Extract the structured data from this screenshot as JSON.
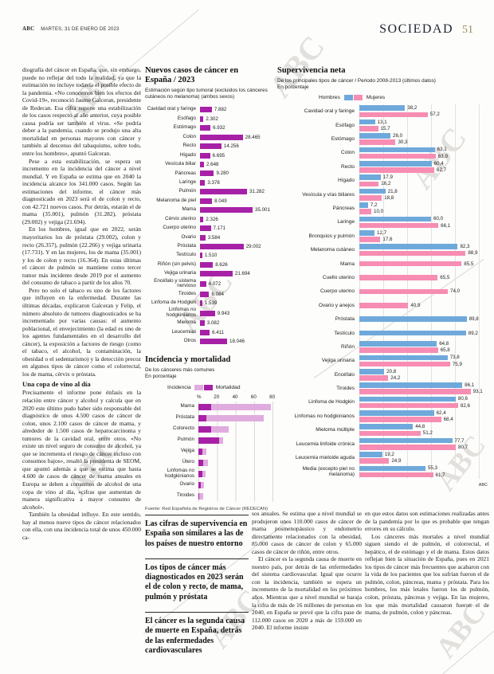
{
  "header": {
    "brand": "ABC",
    "date": "MARTES, 31 DE ENERO DE 2023",
    "section": "SOCIEDAD",
    "page": "51"
  },
  "watermark_text": "ABC",
  "colors": {
    "purple": "#a721a7",
    "purple_light": "#e0acdf",
    "blue": "#6fa9db",
    "pink": "#f78db3",
    "gold": "#9d8e57"
  },
  "article": {
    "paragraphs": [
      "diografía del cáncer en España, que, sin embargo, puede no reflejar del todo la realidad, ya que la estimación no incluye todavía el posible efecto de la pandemia. «No conocemos bien los efectos del Covid-19», reconoció Jaume Galceran, presidente de Redecan. Esa cifra supone una estabilización de los casos respecto al año anterior, cuya posible causa podría ser también el virus. «Se podría deber a la pandemia, cuando se produjo una alta mortalidad en personas mayores con cáncer y también al descenso del tabaquismo, sobre todo, entre los hombres», apuntó Galceran.",
      "Pese a esta estabilización, se espera un incremento en la incidencia del cáncer a nivel mundial. Y en España se estima que en 2040 la incidencia alcance los 341.000 casos. Según las estimaciones del informe, el cáncer más diagnosticado en 2023 será el de colon y recto, con 42.721 nuevos casos. Por detrás, estarán el de mama (35.001), pulmón (31.282), próstata (29.002) y vejiga (21.694).",
      "En los hombres, igual que en 2022, serán mayoritarios los de próstata (29.002), colon y recto (26.357), pulmón (22.266) y vejiga urinaria (17.731). Y en las mujeres, los de mama (35.001) y los de colon y recto (16.364). En estas últimas el cáncer de pulmón se mantiene como tercer tumor más incidente desde 2019 por el aumento del consumo de tabaco a partir de los años 70.",
      "Pero no solo el tabaco es uno de los factores que influyen en la enfermedad. Durante las últimas décadas, explicaron Galceran y Felip, el número absoluto de tumores diagnosticados se ha incrementado por varias causas: el aumento poblacional, el envejecimiento (la edad es uno de los agentes fundamentales en el desarrollo del cáncer), la exposición a factores de riesgo (como el tabaco, el alcohol, la contaminación, la obesidad o el sedentarismo) y la detección precoz en algunos tipos de cáncer como el colorrectal, los de mama, cérvix o próstata."
    ],
    "subhead": "Una copa de vino al día",
    "paragraphs2": [
      "Precisamente el informe pone énfasis en la relación entre cáncer y alcohol y calcula que en 2020 este último pudo haber sido responsable del diagnóstico de unos 4.500 casos de cáncer de colon, unos 2.100 casos de cáncer de mama, y alrededor de 1.500 casos de hepatocarcinoma y tumores de la cavidad oral, entre otros. «No existe un nivel seguro de consumo de alcohol, ya que se incrementa el riesgo de cáncer incluso con consumos bajos», resaltó la presidenta de SEOM, que apuntó además a que se estima que hasta 4.600 de casos de cáncer de mama anuales en Europa se deben a consumos de alcohol de una copa de vino al día, «cifras que aumentan de manera significativa a mayor consumo de alcohol».",
      "También la obesidad influye. En este sentido, hay al menos nueve tipos de cáncer relacionados con ella, con una incidencia total de unos 450.000 ca-"
    ]
  },
  "chart_data": [
    {
      "type": "bar",
      "title": "Nuevos casos de cáncer en España / 2023",
      "subtitle": "Estimación según tipo tumoral (excluidos los cánceres cutáneos no melanoma) (ambos sexos)",
      "xlim": [
        0,
        35001
      ],
      "bar_color": "#a721a7",
      "items": [
        {
          "label": "Cavidad oral y faringe",
          "value": 7882
        },
        {
          "label": "Esófago",
          "value": 2302
        },
        {
          "label": "Estómago",
          "value": 6932
        },
        {
          "label": "Colon",
          "value": 28465
        },
        {
          "label": "Recto",
          "value": 14256
        },
        {
          "label": "Hígado",
          "value": 6695
        },
        {
          "label": "Vesícula biliar",
          "value": 2648
        },
        {
          "label": "Páncreas",
          "value": 9280
        },
        {
          "label": "Laringe",
          "value": 3378
        },
        {
          "label": "Pulmón",
          "value": 31282
        },
        {
          "label": "Melanoma de piel",
          "value": 8049
        },
        {
          "label": "Mama",
          "value": 35001
        },
        {
          "label": "Cérvix uterino",
          "value": 2326
        },
        {
          "label": "Cuerpo uterino",
          "value": 7171
        },
        {
          "label": "Ovario",
          "value": 3584
        },
        {
          "label": "Próstata",
          "value": 29002
        },
        {
          "label": "Testículo",
          "value": 1510
        },
        {
          "label": "Riñón (sin pelvis)",
          "value": 8626
        },
        {
          "label": "Vejiga urinaria",
          "value": 21694
        },
        {
          "label": "Encéfalo y sistema nervioso",
          "value": 4072
        },
        {
          "label": "Tiroides",
          "value": 6084
        },
        {
          "label": "Linfoma de Hodgkin",
          "value": 1539
        },
        {
          "label": "Linfomas no hodgkinianos",
          "value": 9943
        },
        {
          "label": "Mieloma",
          "value": 3082
        },
        {
          "label": "Leucemias",
          "value": 6411
        },
        {
          "label": "Otros",
          "value": 18046
        }
      ]
    },
    {
      "type": "bar",
      "title": "Incidencia y mortalidad",
      "subtitle": "De los cánceres más comunes",
      "unit": "En porcentaje",
      "legend": [
        "Incidencia",
        "Mortalidad"
      ],
      "axis_ticks": [
        "%",
        "20",
        "40",
        "60",
        "80"
      ],
      "xlim": [
        0,
        85
      ],
      "grid": true,
      "items": [
        {
          "label": "Mama",
          "incidencia": 78,
          "mortalidad": 14
        },
        {
          "label": "Próstata",
          "incidencia": 70,
          "mortalidad": 9
        },
        {
          "label": "Colorecto",
          "incidencia": 33,
          "mortalidad": 14
        },
        {
          "label": "Pulmón",
          "incidencia": 27,
          "mortalidad": 22
        },
        {
          "label": "Vejiga",
          "incidencia": 9,
          "mortalidad": 4
        },
        {
          "label": "Útero",
          "incidencia": 10,
          "mortalidad": 5
        },
        {
          "label": "Linfomas no hodgkinianos",
          "incidencia": 8,
          "mortalidad": 4
        },
        {
          "label": "Ovario",
          "incidencia": 6,
          "mortalidad": 3
        },
        {
          "label": "Tiroides",
          "incidencia": 5,
          "mortalidad": 1
        }
      ],
      "source": "Fuente: Red Española de Registros de Cáncer (REDECAN)"
    },
    {
      "type": "bar",
      "title": "Supervivencia neta",
      "subtitle": "De los principales tipos de cáncer / Periodo 2008-2013 (últimos datos)",
      "unit": "En porcentaje",
      "legend": [
        "Hombres",
        "Mujeres"
      ],
      "xlim": [
        0,
        100
      ],
      "grid": true,
      "series": [
        "Hombres",
        "Mujeres"
      ],
      "items": [
        {
          "label": "Cavidad oral y faringe",
          "hombres": 38.2,
          "mujeres": 57.2
        },
        {
          "label": "Esófago",
          "hombres": 13.1,
          "mujeres": 15.7
        },
        {
          "label": "Estómago",
          "hombres": 26.0,
          "mujeres": 30.3
        },
        {
          "label": "Colon",
          "hombres": 63.1,
          "mujeres": 63.9
        },
        {
          "label": "Recto",
          "hombres": 60.4,
          "mujeres": 62.7
        },
        {
          "label": "Hígado",
          "hombres": 17.9,
          "mujeres": 16.2
        },
        {
          "label": "Vesícula y vías biliares",
          "hombres": 21.8,
          "mujeres": 18.8
        },
        {
          "label": "Páncreas",
          "hombres": 7.2,
          "mujeres": 10.0
        },
        {
          "label": "Laringe",
          "hombres": 60.0,
          "mujeres": 66.1
        },
        {
          "label": "Bronquios y pulmón",
          "hombres": 12.7,
          "mujeres": 17.6
        },
        {
          "label": "Melanoma cutáneo",
          "hombres": 82.3,
          "mujeres": 88.9
        },
        {
          "label": "Mama",
          "hombres": null,
          "mujeres": 85.5
        },
        {
          "label": "Cuello uterino",
          "hombres": null,
          "mujeres": 65.5
        },
        {
          "label": "Cuerpo uterino",
          "hombres": null,
          "mujeres": 74.0
        },
        {
          "label": "Ovario y anejos",
          "hombres": null,
          "mujeres": 40.9
        },
        {
          "label": "Próstata",
          "hombres": 89.8,
          "mujeres": null
        },
        {
          "label": "Testículo",
          "hombres": 89.2,
          "mujeres": null
        },
        {
          "label": "Riñón",
          "hombres": 64.8,
          "mujeres": 65.8
        },
        {
          "label": "Vejiga urinaria",
          "hombres": 73.8,
          "mujeres": 75.9
        },
        {
          "label": "Encéfalo",
          "hombres": 20.8,
          "mujeres": 24.2
        },
        {
          "label": "Tiroides",
          "hombres": 86.1,
          "mujeres": 93.1
        },
        {
          "label": "Linfoma de Hodgkin",
          "hombres": 80.6,
          "mujeres": 82.6
        },
        {
          "label": "Linfomas no hodgkinianos",
          "hombres": 62.4,
          "mujeres": 68.4
        },
        {
          "label": "Mieloma múltiple",
          "hombres": 44.8,
          "mujeres": 51.2
        },
        {
          "label": "Leucemia linfoide crónica",
          "hombres": 77.7,
          "mujeres": 80.7
        },
        {
          "label": "Leucemia mieloide aguda",
          "hombres": 19.2,
          "mujeres": 24.9
        },
        {
          "label": "Media (excepto piel no melanoma)",
          "hombres": 55.3,
          "mujeres": 61.7
        }
      ],
      "credit": "ABC"
    }
  ],
  "pull_quotes": [
    "Las cifras de supervivencia en España son similares a las de los países de nuestro entorno",
    "Los tipos de cáncer más diagnosticados en 2023 serán el de colon y recto, de mama, pulmón y próstata",
    "El cáncer es la segunda causa de muerte en España, detrás de las enfermedades cardiovasculares"
  ],
  "bottom_columns": {
    "col1": [
      "sos anuales. Se estima que a nivel mundial se produjeron unos 110.000 casos de cáncer de mama posmenopáusico y endometrio directamente relacionados con la obesidad, 85.000 casos de cáncer de colon y 65.000 casos de cáncer de riñón, entre otros.",
      "El cáncer es la segunda causa de muerte en nuestro país, por detrás de las enfermedades del sistema cardiovascular. Igual que ocurre con la incidencia, también se espera un incremento de la mortalidad en los próximos años. Mientras que a nivel mundial se baraja la cifra de más de 16 millones de personas en 2040, en España se prevé que la cifra pase de 112.000 casos en 2020 a más de 159.000 en 2040. El informe insiste"
    ],
    "col2": [
      "en que estos datos son estimaciones realizadas antes de la pandemia por lo que es probable que tengan errores en su cálculo.",
      "Los cánceres más mortales a nivel mundial siguen siendo el de pulmón, el colorrectal, el hepático, el de estómago y el de mama. Estos datos reflejan bien la situación de España, pues en 2021 los tipos de cáncer más frecuentes que acabaron con la vida de los pacientes que los sufrían fueron el de pulmón, colon, páncreas, mama y próstata. Para los hombres, los más letales fueron los de pulmón, colon, próstata, páncreas y vejiga. En las mujeres, los que más mortalidad causaron fueron el de mama, de pulmón, colon y páncreas."
    ]
  }
}
